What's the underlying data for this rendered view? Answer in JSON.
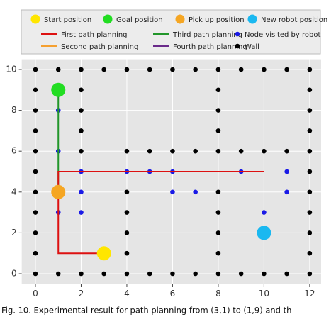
{
  "chart_data": {
    "type": "scatter",
    "caption": "Fig. 10. Experimental result for path planning from (3,1) to (1,9) and th",
    "xlim": [
      -0.6,
      12.5
    ],
    "ylim": [
      -0.5,
      10.5
    ],
    "xticks": [
      0,
      2,
      4,
      6,
      8,
      10,
      12
    ],
    "yticks": [
      0,
      2,
      4,
      6,
      8,
      10
    ],
    "grid": true,
    "series": [
      {
        "name": "Start position",
        "style": "big-point",
        "color": "#ffe600",
        "x": [
          3
        ],
        "y": [
          1
        ]
      },
      {
        "name": "Goal position",
        "style": "big-point",
        "color": "#22dd22",
        "x": [
          1
        ],
        "y": [
          9
        ]
      },
      {
        "name": "Pick up position",
        "style": "big-point",
        "color": "#f5a623",
        "x": [
          1
        ],
        "y": [
          4
        ]
      },
      {
        "name": "New robot position",
        "style": "big-point",
        "color": "#1ab8f0",
        "x": [
          10
        ],
        "y": [
          2
        ]
      },
      {
        "name": "First path planning",
        "style": "line",
        "color": "#dd1111",
        "x": [
          3,
          1,
          1,
          10
        ],
        "y": [
          1,
          1,
          5,
          5
        ]
      },
      {
        "name": "Second path planning",
        "style": "line",
        "color": "#f5a030",
        "x": [
          10,
          7
        ],
        "y": [
          5,
          5
        ]
      },
      {
        "name": "Third path planning",
        "style": "line",
        "color": "#22962a",
        "x": [
          1,
          1
        ],
        "y": [
          4,
          9
        ]
      },
      {
        "name": "Fourth path planning",
        "style": "line",
        "color": "#6a2a8a",
        "x": [
          7,
          1
        ],
        "y": [
          5,
          5
        ]
      },
      {
        "name": "Node visited by robot",
        "style": "point",
        "color": "#1a1ae6",
        "x": [
          1,
          1,
          1,
          2,
          2,
          2,
          4,
          5,
          6,
          6,
          7,
          9,
          11,
          11,
          10
        ],
        "y": [
          8,
          6,
          3,
          3,
          4,
          5,
          5,
          5,
          5,
          4,
          4,
          5,
          5,
          4,
          3
        ]
      },
      {
        "name": "Wall",
        "style": "point",
        "color": "#000000",
        "x": [
          0,
          1,
          2,
          3,
          4,
          5,
          6,
          7,
          8,
          9,
          10,
          11,
          12,
          0,
          2,
          8,
          12,
          0,
          2,
          8,
          12,
          0,
          2,
          8,
          12,
          0,
          2,
          4,
          5,
          6,
          7,
          8,
          9,
          10,
          11,
          12,
          0,
          12,
          0,
          4,
          8,
          12,
          0,
          4,
          8,
          12,
          0,
          4,
          8,
          12,
          0,
          4,
          8,
          12,
          0,
          1,
          2,
          3,
          4,
          5,
          6,
          7,
          8,
          9,
          10,
          11,
          12
        ],
        "y": [
          10,
          10,
          10,
          10,
          10,
          10,
          10,
          10,
          10,
          10,
          10,
          10,
          10,
          9,
          9,
          9,
          9,
          8,
          8,
          8,
          8,
          7,
          7,
          7,
          7,
          6,
          6,
          6,
          6,
          6,
          6,
          6,
          6,
          6,
          6,
          6,
          5,
          5,
          4,
          4,
          4,
          4,
          3,
          3,
          3,
          3,
          2,
          2,
          2,
          2,
          1,
          1,
          1,
          1,
          0,
          0,
          0,
          0,
          0,
          0,
          0,
          0,
          0,
          0,
          0,
          0,
          0
        ]
      }
    ]
  }
}
